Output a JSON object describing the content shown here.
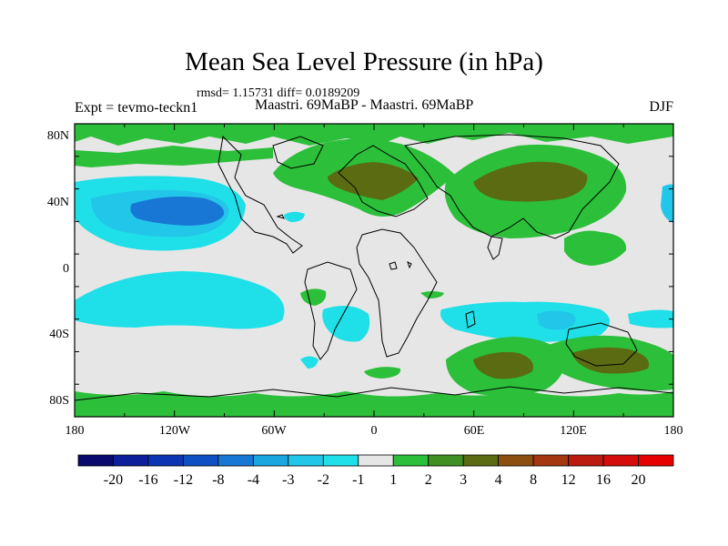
{
  "title": "Mean Sea Level Pressure (in hPa)",
  "stats_line": "rmsd= 1.15731 diff= 0.0189209",
  "experiment_label": "Expt = tevmo-teckn1",
  "runs_label": "Maastri.  69MaBP - Maastri.  69MaBP",
  "season_label": "DJF",
  "y_ticks": [
    "80N",
    "40N",
    "0",
    "40S",
    "80S"
  ],
  "x_ticks": [
    "180",
    "120W",
    "60W",
    "0",
    "60E",
    "120E",
    "180"
  ],
  "colorbar": {
    "labels": [
      "-20",
      "-16",
      "-12",
      "-8",
      "-4",
      "-3",
      "-2",
      "-1",
      "1",
      "2",
      "3",
      "4",
      "8",
      "12",
      "16",
      "20"
    ],
    "colors": [
      "#0a0a6e",
      "#0c1e99",
      "#0d35b3",
      "#0e50c4",
      "#1877d4",
      "#1ba6e0",
      "#22c6e8",
      "#1fe0e8",
      "#e6e6e6",
      "#2cbf3a",
      "#3f8f23",
      "#5a6b12",
      "#8c4f10",
      "#a53612",
      "#bb1b0f",
      "#d40c0c",
      "#e60000"
    ]
  }
}
